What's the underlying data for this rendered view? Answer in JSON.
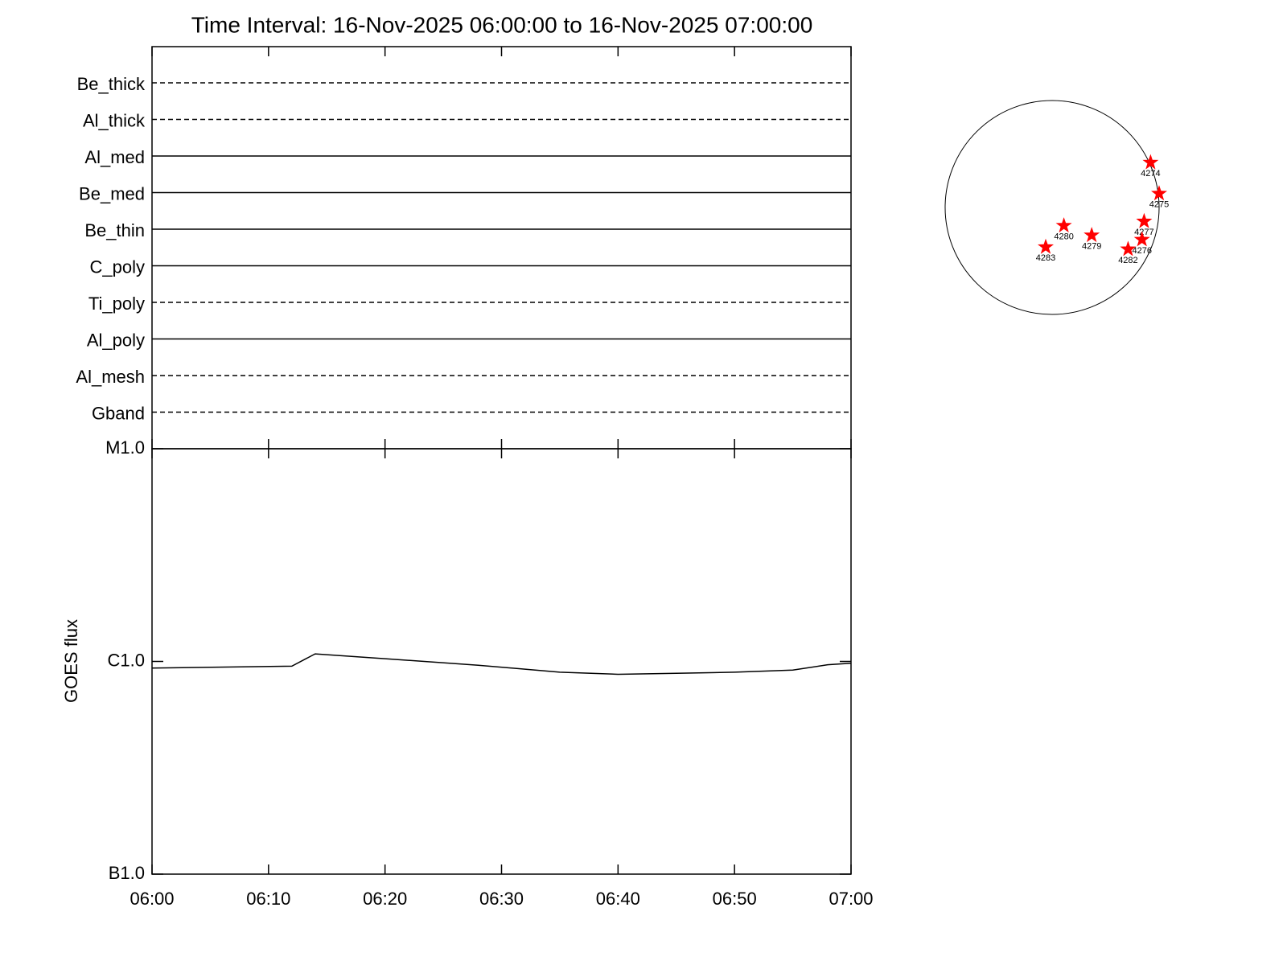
{
  "chart_data": [
    {
      "type": "filter-status",
      "title": "Time Interval: 16-Nov-2025 06:00:00 to 16-Nov-2025 07:00:00",
      "categories": [
        "Be_thick",
        "Al_thick",
        "Al_med",
        "Be_med",
        "Be_thin",
        "C_poly",
        "Ti_poly",
        "Al_poly",
        "Al_mesh",
        "Gband"
      ],
      "line_styles": [
        "dashed",
        "dashed",
        "solid",
        "solid",
        "solid",
        "solid",
        "dashed",
        "solid",
        "dashed",
        "dashed"
      ],
      "color": "#000000"
    },
    {
      "type": "line",
      "ylabel": "GOES flux",
      "x": [
        "06:00",
        "06:12",
        "06:14",
        "06:20",
        "06:28",
        "06:35",
        "06:40",
        "06:45",
        "06:50",
        "06:55",
        "06:58",
        "07:00"
      ],
      "values": [
        9.3e-07,
        9.5e-07,
        1.085e-06,
        1.03e-06,
        9.6e-07,
        8.9e-07,
        8.7e-07,
        8.8e-07,
        8.9e-07,
        9.1e-07,
        9.65e-07,
        9.8e-07
      ],
      "color": "#000000",
      "log_scale": true,
      "xlim": [
        "06:00",
        "07:00"
      ],
      "xticks": [
        "06:00",
        "06:10",
        "06:20",
        "06:30",
        "06:40",
        "06:50",
        "07:00"
      ],
      "ylim": [
        1e-07,
        1e-05
      ],
      "yticks": [
        {
          "value": 1e-07,
          "label": "B1.0"
        },
        {
          "value": 1e-06,
          "label": "C1.0"
        },
        {
          "value": 1e-05,
          "label": "M1.0"
        }
      ]
    },
    {
      "type": "scatter",
      "labels": [
        "4274",
        "4275",
        "4277",
        "4276",
        "4282",
        "4279",
        "4280",
        "4283"
      ],
      "x": [
        0.92,
        1.0,
        0.86,
        0.84,
        0.71,
        0.37,
        0.11,
        -0.06
      ],
      "values": [
        0.42,
        0.13,
        -0.13,
        -0.3,
        -0.39,
        -0.26,
        -0.17,
        -0.37
      ],
      "color": "#ff0000",
      "xlim": [
        -1,
        1
      ],
      "ylim": [
        -1,
        1
      ]
    }
  ]
}
